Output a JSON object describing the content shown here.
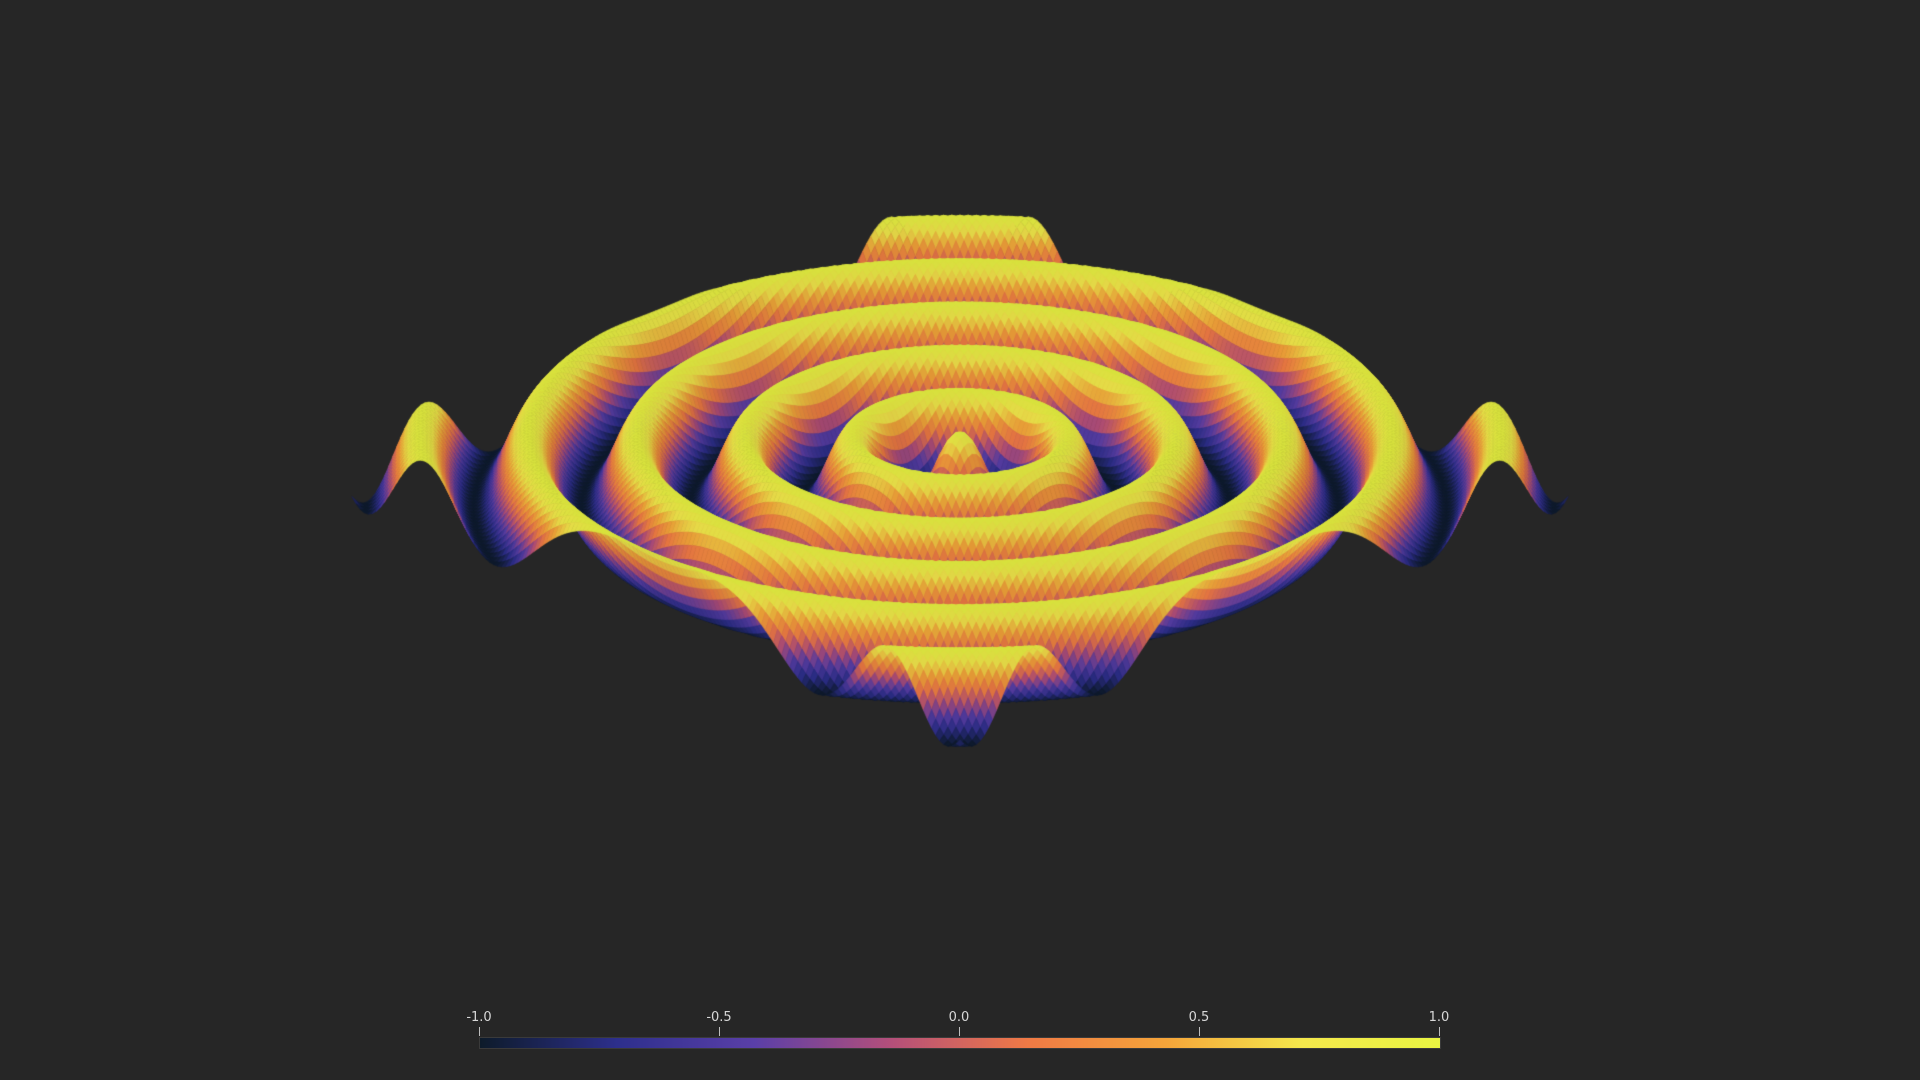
{
  "chart_data": {
    "type": "surface",
    "function": "z = cos(r), r = sqrt(x^2 + y^2)",
    "x_range": [
      -25,
      25
    ],
    "y_range": [
      -25,
      25
    ],
    "z_range": [
      -1,
      1
    ],
    "colormap": "plasma-like",
    "colorbar": {
      "orientation": "horizontal",
      "placement": "bottom",
      "range": [
        -1.0,
        1.0
      ],
      "ticks": [
        "-1.0",
        "-0.5",
        "0.0",
        "0.5",
        "1.0"
      ],
      "tick_values": [
        -1.0,
        -0.5,
        0.0,
        0.5,
        1.0
      ],
      "stops": [
        "#0d1b2a",
        "#2d2f8c",
        "#5a3fa8",
        "#b44f7a",
        "#f07a45",
        "#f5a53a",
        "#f4e84c",
        "#e9f542"
      ]
    },
    "background": "#262626"
  }
}
